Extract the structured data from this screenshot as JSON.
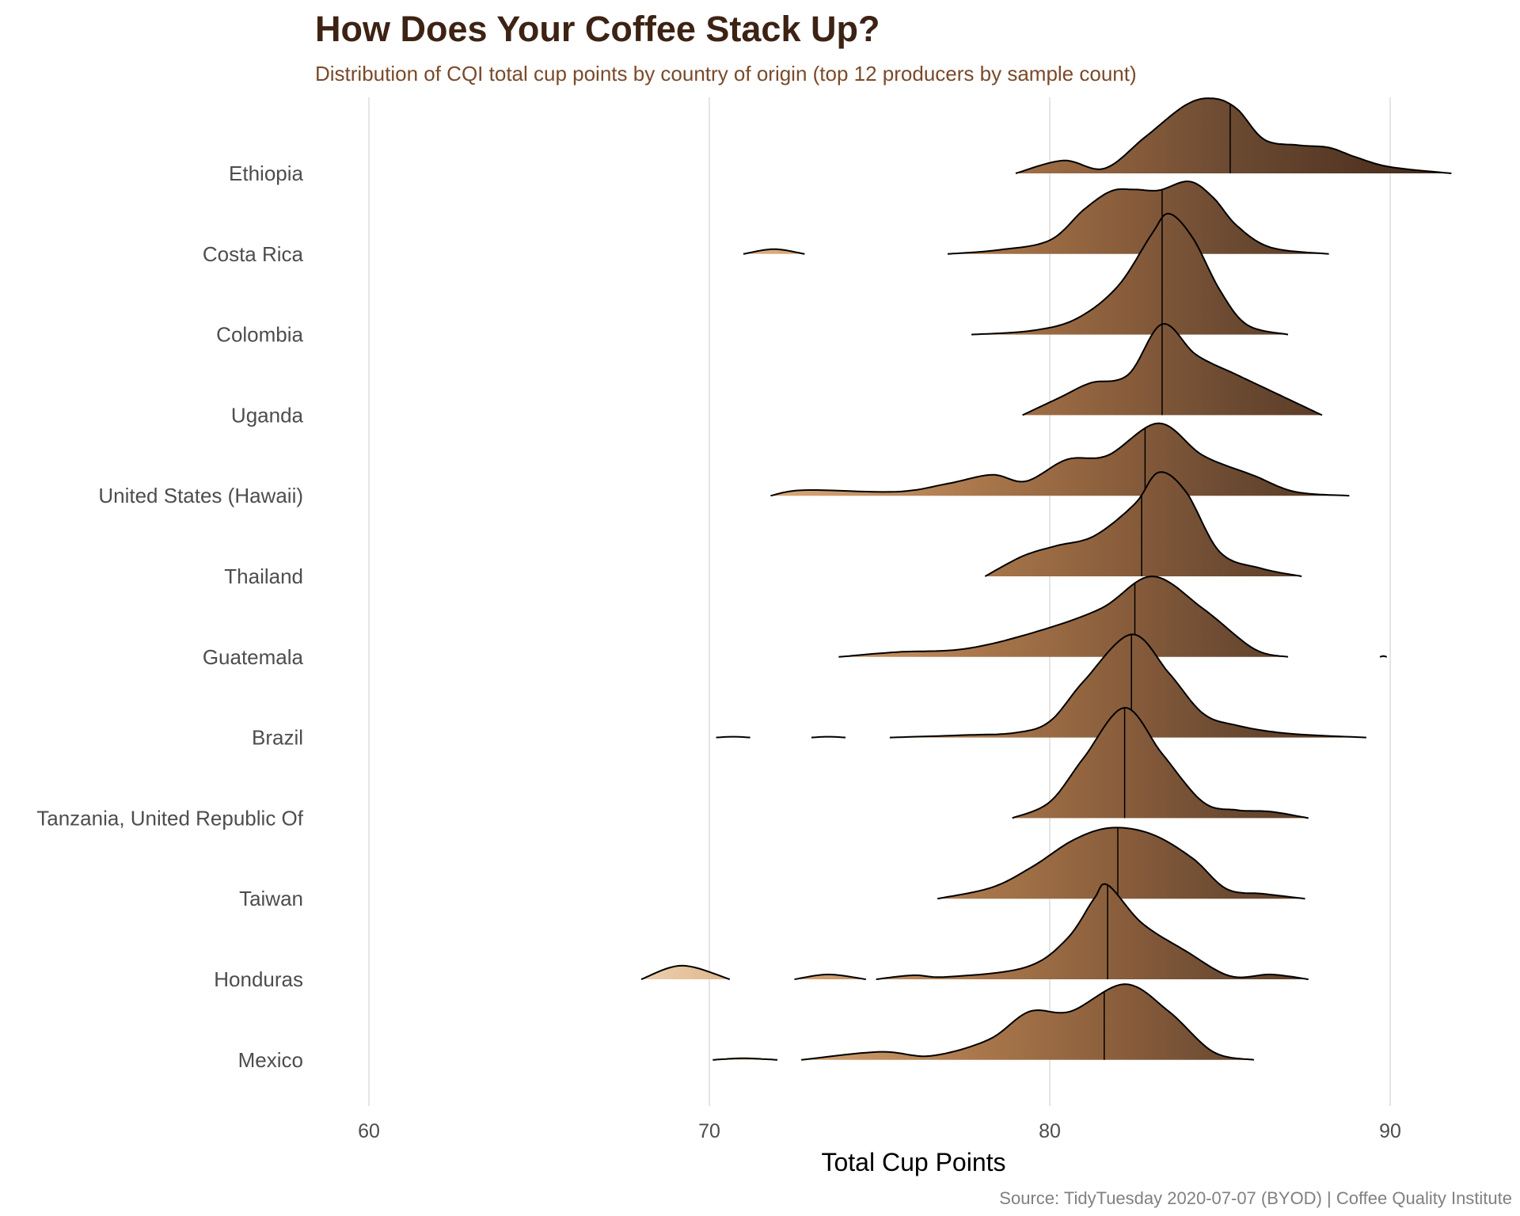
{
  "colors": {
    "title": "#3d2314",
    "subtitle": "#7a4a2a",
    "gradient": [
      [
        "68",
        "#ecd0b0"
      ],
      [
        "72",
        "#d9a878"
      ],
      [
        "78",
        "#a8764a"
      ],
      [
        "82",
        "#8a5e3c"
      ],
      [
        "85",
        "#6e4c33"
      ],
      [
        "90",
        "#4e321f"
      ],
      [
        "92",
        "#3e2614"
      ]
    ]
  },
  "chart_data": {
    "type": "ridgeline",
    "title": "How Does Your Coffee Stack Up?",
    "subtitle": "Distribution of CQI total cup points by country of origin (top 12 producers by sample count)",
    "xlabel": "Total Cup Points",
    "ylabel": "",
    "caption": "Source: TidyTuesday 2020-07-07 (BYOD) | Coffee Quality Institute",
    "xlim": [
      58.5,
      92.5
    ],
    "xticks": [
      60,
      70,
      80,
      90
    ],
    "grid": "vertical",
    "fill": "gradient by x value (light tan at low scores to dark brown at high scores)",
    "density_units": "relative height (1 = row spacing)",
    "series": [
      {
        "name": "Ethiopia",
        "median": 85.3,
        "segments": [
          [
            [
              79.0,
              0
            ],
            [
              80.4,
              0.16
            ],
            [
              81.6,
              0.06
            ],
            [
              82.8,
              0.45
            ],
            [
              84.0,
              0.85
            ],
            [
              84.8,
              0.93
            ],
            [
              85.5,
              0.8
            ],
            [
              86.3,
              0.42
            ],
            [
              87.3,
              0.35
            ],
            [
              88.2,
              0.32
            ],
            [
              89.0,
              0.2
            ],
            [
              90.0,
              0.08
            ],
            [
              91.8,
              0
            ]
          ]
        ]
      },
      {
        "name": "Costa Rica",
        "median": 83.3,
        "segments": [
          [
            [
              71.0,
              0
            ],
            [
              71.9,
              0.06
            ],
            [
              72.8,
              0
            ]
          ],
          [
            [
              77.0,
              0
            ],
            [
              78.5,
              0.05
            ],
            [
              80.0,
              0.17
            ],
            [
              81.0,
              0.55
            ],
            [
              81.8,
              0.78
            ],
            [
              82.5,
              0.8
            ],
            [
              83.2,
              0.79
            ],
            [
              84.1,
              0.9
            ],
            [
              84.8,
              0.7
            ],
            [
              85.5,
              0.35
            ],
            [
              86.5,
              0.08
            ],
            [
              88.2,
              0
            ]
          ]
        ]
      },
      {
        "name": "Colombia",
        "median": 83.3,
        "segments": [
          [
            [
              77.7,
              0
            ],
            [
              79.5,
              0.05
            ],
            [
              80.8,
              0.2
            ],
            [
              82.0,
              0.6
            ],
            [
              83.0,
              1.25
            ],
            [
              83.5,
              1.5
            ],
            [
              84.2,
              1.2
            ],
            [
              85.0,
              0.55
            ],
            [
              85.8,
              0.12
            ],
            [
              87.0,
              0
            ]
          ]
        ]
      },
      {
        "name": "Uganda",
        "median": 83.3,
        "segments": [
          [
            [
              79.2,
              0
            ],
            [
              80.3,
              0.22
            ],
            [
              81.2,
              0.4
            ],
            [
              82.3,
              0.5
            ],
            [
              83.3,
              1.13
            ],
            [
              84.3,
              0.75
            ],
            [
              85.5,
              0.5
            ],
            [
              86.5,
              0.3
            ],
            [
              88.0,
              0
            ]
          ]
        ]
      },
      {
        "name": "United States (Hawaii)",
        "median": 82.8,
        "segments": [
          [
            [
              71.8,
              0
            ],
            [
              72.8,
              0.07
            ],
            [
              75.5,
              0.05
            ],
            [
              77.0,
              0.15
            ],
            [
              78.3,
              0.26
            ],
            [
              79.3,
              0.18
            ],
            [
              80.5,
              0.45
            ],
            [
              81.7,
              0.5
            ],
            [
              83.2,
              0.9
            ],
            [
              84.5,
              0.5
            ],
            [
              86.0,
              0.25
            ],
            [
              87.2,
              0.05
            ],
            [
              88.8,
              0
            ]
          ]
        ]
      },
      {
        "name": "Thailand",
        "median": 82.7,
        "segments": [
          [
            [
              78.1,
              0
            ],
            [
              79.2,
              0.25
            ],
            [
              80.2,
              0.38
            ],
            [
              81.3,
              0.5
            ],
            [
              82.5,
              0.9
            ],
            [
              83.2,
              1.29
            ],
            [
              84.0,
              1.05
            ],
            [
              85.0,
              0.3
            ],
            [
              86.2,
              0.1
            ],
            [
              87.4,
              0
            ]
          ]
        ]
      },
      {
        "name": "Guatemala",
        "median": 82.5,
        "segments": [
          [
            [
              73.8,
              0
            ],
            [
              75.5,
              0.06
            ],
            [
              77.5,
              0.1
            ],
            [
              79.5,
              0.3
            ],
            [
              81.5,
              0.6
            ],
            [
              83.0,
              1.0
            ],
            [
              84.5,
              0.6
            ],
            [
              86.0,
              0.1
            ],
            [
              87.0,
              0
            ]
          ],
          [
            [
              89.7,
              0
            ],
            [
              89.8,
              0.01
            ],
            [
              89.9,
              0
            ]
          ]
        ]
      },
      {
        "name": "Brazil",
        "median": 82.4,
        "segments": [
          [
            [
              70.2,
              0
            ],
            [
              70.7,
              0.01
            ],
            [
              71.2,
              0
            ]
          ],
          [
            [
              73.0,
              0
            ],
            [
              73.5,
              0.01
            ],
            [
              74.0,
              0
            ]
          ],
          [
            [
              75.3,
              0
            ],
            [
              77.5,
              0.03
            ],
            [
              79.0,
              0.06
            ],
            [
              80.0,
              0.2
            ],
            [
              81.0,
              0.7
            ],
            [
              82.4,
              1.28
            ],
            [
              83.5,
              0.8
            ],
            [
              84.5,
              0.3
            ],
            [
              85.5,
              0.15
            ],
            [
              87.0,
              0.05
            ],
            [
              89.3,
              0
            ]
          ]
        ]
      },
      {
        "name": "Tanzania, United Republic Of",
        "median": 82.2,
        "segments": [
          [
            [
              78.9,
              0
            ],
            [
              80.0,
              0.2
            ],
            [
              81.0,
              0.75
            ],
            [
              82.2,
              1.37
            ],
            [
              83.3,
              0.8
            ],
            [
              84.5,
              0.2
            ],
            [
              85.5,
              0.1
            ],
            [
              86.5,
              0.08
            ],
            [
              87.6,
              0
            ]
          ]
        ]
      },
      {
        "name": "Taiwan",
        "median": 82.0,
        "segments": [
          [
            [
              76.7,
              0
            ],
            [
              78.3,
              0.14
            ],
            [
              79.5,
              0.4
            ],
            [
              80.7,
              0.73
            ],
            [
              81.8,
              0.88
            ],
            [
              83.0,
              0.8
            ],
            [
              84.2,
              0.5
            ],
            [
              85.2,
              0.12
            ],
            [
              86.3,
              0.06
            ],
            [
              87.5,
              0
            ]
          ]
        ]
      },
      {
        "name": "Honduras",
        "median": 81.7,
        "segments": [
          [
            [
              68.0,
              0
            ],
            [
              69.2,
              0.17
            ],
            [
              70.6,
              0
            ]
          ],
          [
            [
              72.5,
              0
            ],
            [
              73.5,
              0.06
            ],
            [
              74.6,
              0
            ]
          ],
          [
            [
              74.9,
              0
            ],
            [
              76.0,
              0.05
            ],
            [
              77.0,
              0.03
            ],
            [
              79.3,
              0.15
            ],
            [
              80.5,
              0.5
            ],
            [
              81.3,
              1.0
            ],
            [
              81.7,
              1.17
            ],
            [
              82.7,
              0.7
            ],
            [
              84.0,
              0.35
            ],
            [
              85.3,
              0.04
            ],
            [
              86.5,
              0.06
            ],
            [
              87.6,
              0
            ]
          ]
        ]
      },
      {
        "name": "Mexico",
        "median": 81.6,
        "segments": [
          [
            [
              70.1,
              0
            ],
            [
              71.0,
              0.02
            ],
            [
              72.0,
              0
            ]
          ],
          [
            [
              72.7,
              0
            ],
            [
              75.0,
              0.1
            ],
            [
              76.5,
              0.05
            ],
            [
              78.2,
              0.25
            ],
            [
              79.4,
              0.6
            ],
            [
              80.6,
              0.6
            ],
            [
              82.2,
              0.94
            ],
            [
              83.5,
              0.6
            ],
            [
              84.8,
              0.1
            ],
            [
              86.0,
              0
            ]
          ]
        ]
      }
    ]
  }
}
